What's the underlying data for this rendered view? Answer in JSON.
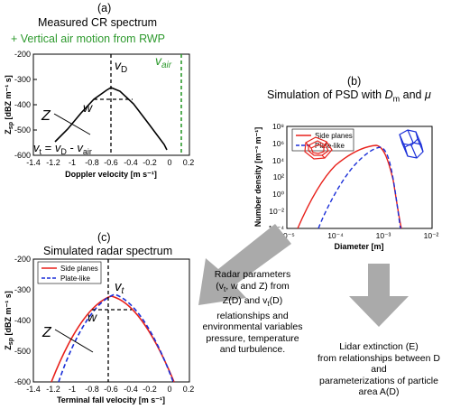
{
  "panel_a": {
    "letter": "(a)",
    "title": "Measured CR spectrum",
    "subtitle": "+ Vertical air motion from RWP",
    "ylabel": "Z",
    "ylabel_sub": "sp",
    "ylabel_unit": " [dBZ m⁻¹ s]",
    "xlabel": "Doppler velocity [m s⁻¹]",
    "yticks": [
      "-200",
      "-300",
      "-400",
      "-500",
      "-600"
    ],
    "xticks": [
      "-1.4",
      "-1.2",
      "-1",
      "-0.8",
      "-0.6",
      "-0.4",
      "-0.2",
      "0",
      "0.2"
    ],
    "ann_vd": "v",
    "ann_vd_sub": "D",
    "ann_vair": "v",
    "ann_vair_sub": "air",
    "ann_w": "w",
    "ann_z": "Z",
    "eq_v": "v",
    "eq_v_sub": "t",
    "eq_rest1": " = ",
    "eq_vd": "v",
    "eq_vd_sub": "D",
    "eq_minus": " - ",
    "eq_vair": "v",
    "eq_vair_sub": "air",
    "colors": {
      "line": "#000000",
      "air": "#2e9a2e"
    }
  },
  "panel_b": {
    "letter": "(b)",
    "title_pre": "Simulation of PSD with ",
    "title_D": "D",
    "title_D_sub": "m",
    "title_and": " and ",
    "title_mu": "μ",
    "ylabel": "Number density [m⁻³ m⁻¹]",
    "xlabel": "Diameter [m]",
    "yticks": [
      "10⁸",
      "10⁶",
      "10⁴",
      "10²",
      "10⁰",
      "10⁻²",
      "10⁻⁴"
    ],
    "xticks": [
      "10⁻⁵",
      "10⁻⁴",
      "10⁻³",
      "10⁻²"
    ],
    "legend": [
      "Side planes",
      "Plate-like"
    ],
    "colors": {
      "side": "#e8211b",
      "plate": "#1b2fd8"
    }
  },
  "panel_c": {
    "letter": "(c)",
    "title": "Simulated radar spectrum",
    "ylabel": "Z",
    "ylabel_sub": "sp",
    "ylabel_unit": " [dBZ m⁻¹ s]",
    "xlabel": "Terminal fall velocity [m s⁻¹]",
    "yticks": [
      "-200",
      "-300",
      "-400",
      "-500",
      "-600"
    ],
    "xticks": [
      "-1.4",
      "-1.2",
      "-1",
      "-0.8",
      "-0.6",
      "-0.4",
      "-0.2",
      "0",
      "0.2"
    ],
    "legend": [
      "Side planes",
      "Plate-like"
    ],
    "ann_vt": "v",
    "ann_vt_sub": "t",
    "ann_w": "w",
    "ann_z": "Z",
    "colors": {
      "side": "#e8211b",
      "plate": "#1b2fd8"
    }
  },
  "text_radar": {
    "l1": "Radar parameters",
    "l2_a": "(v",
    "l2_b": "t",
    "l2_c": ", w and Z) from",
    "l3_a": "Z(D) and v",
    "l3_b": "t",
    "l3_c": "(D)",
    "l4": "relationships and",
    "l5": "environmental variables",
    "l6": "pressure, temperature",
    "l7": "and turbulence."
  },
  "text_lidar": {
    "l1": "Lidar extinction (E)",
    "l2": "from relationships between D and",
    "l3": "parameterizations of particle",
    "l4": "area A(D)"
  }
}
